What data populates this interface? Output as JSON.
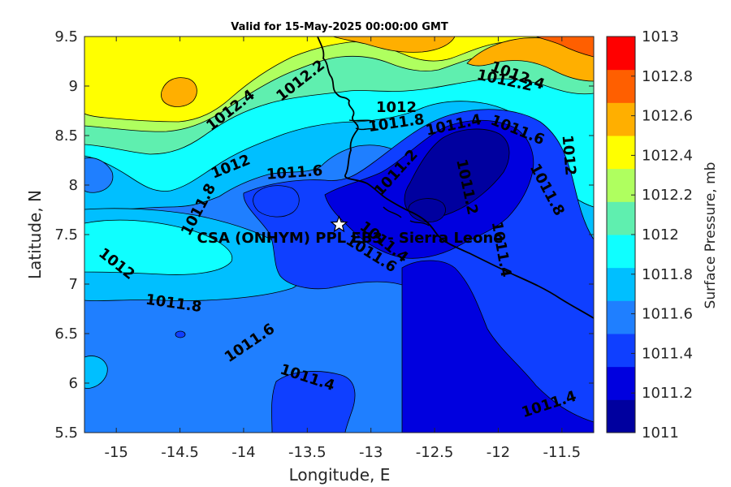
{
  "chart_data": {
    "type": "contour",
    "title": "Valid for 15-May-2025 00:00:00 GMT",
    "xlabel": "Longitude, E",
    "ylabel": "Latitude, N",
    "xlim": [
      -15.25,
      -11.25
    ],
    "ylim": [
      5.5,
      9.5
    ],
    "xticks": [
      -15,
      -14.5,
      -14,
      -13.5,
      -13,
      -12.5,
      -12,
      -11.5
    ],
    "xtick_labels": [
      "-15",
      "-14.5",
      "-14",
      "-13.5",
      "-13",
      "-12.5",
      "-12",
      "-11.5"
    ],
    "yticks": [
      5.5,
      6,
      6.5,
      7,
      7.5,
      8,
      8.5,
      9,
      9.5
    ],
    "ytick_labels": [
      "5.5",
      "6",
      "6.5",
      "7",
      "7.5",
      "8",
      "8.5",
      "9",
      "9.5"
    ],
    "colorbar": {
      "label": "Surface Pressure, mb",
      "levels": [
        1011,
        1011.2,
        1011.4,
        1011.6,
        1011.8,
        1012,
        1012.2,
        1012.4,
        1012.6,
        1012.8,
        1013
      ],
      "tick_labels": [
        "1011",
        "1011.2",
        "1011.4",
        "1011.6",
        "1011.8",
        "1012",
        "1012.2",
        "1012.4",
        "1012.6",
        "1012.8",
        "1013"
      ],
      "colors": [
        "#00009f",
        "#0000df",
        "#0f3fff",
        "#1f7fff",
        "#00bfff",
        "#0fffff",
        "#5fefaf",
        "#afff5f",
        "#ffff00",
        "#ffaf00",
        "#ff5f00",
        "#ff0000"
      ]
    },
    "site": {
      "name": "CSA (ONHYM) PPL EB3 - Sierra Leone",
      "lon": -13.25,
      "lat": 7.6
    },
    "contour_labels": [
      {
        "text": "1012.4",
        "lon": -14.1,
        "lat": 8.75,
        "angle": -38
      },
      {
        "text": "1012.2",
        "lon": -13.55,
        "lat": 9.05,
        "angle": -38
      },
      {
        "text": "1012.4",
        "lon": -11.85,
        "lat": 9.1,
        "angle": 20
      },
      {
        "text": "1012.2",
        "lon": -11.95,
        "lat": 9.05,
        "angle": 12
      },
      {
        "text": "1012",
        "lon": -12.8,
        "lat": 8.78,
        "angle": 0
      },
      {
        "text": "1011.8",
        "lon": -12.8,
        "lat": 8.62,
        "angle": -8
      },
      {
        "text": "1011.4",
        "lon": -12.35,
        "lat": 8.6,
        "angle": -12
      },
      {
        "text": "1011.6",
        "lon": -11.85,
        "lat": 8.55,
        "angle": 22
      },
      {
        "text": "1012",
        "lon": -14.1,
        "lat": 8.18,
        "angle": -22
      },
      {
        "text": "1011.6",
        "lon": -13.6,
        "lat": 8.12,
        "angle": -4
      },
      {
        "text": "1011.2",
        "lon": -12.8,
        "lat": 8.12,
        "angle": -48
      },
      {
        "text": "1011.2",
        "lon": -12.25,
        "lat": 7.98,
        "angle": 78
      },
      {
        "text": "1012",
        "lon": -11.45,
        "lat": 8.3,
        "angle": 85
      },
      {
        "text": "1011.8",
        "lon": -11.62,
        "lat": 7.95,
        "angle": 62
      },
      {
        "text": "1011.8",
        "lon": -14.35,
        "lat": 7.75,
        "angle": -62
      },
      {
        "text": "1011.4",
        "lon": -11.98,
        "lat": 7.35,
        "angle": 80
      },
      {
        "text": "1011.4",
        "lon": -12.9,
        "lat": 7.42,
        "angle": 38
      },
      {
        "text": "1011.6",
        "lon": -13.0,
        "lat": 7.3,
        "angle": 32
      },
      {
        "text": "1012",
        "lon": -15.0,
        "lat": 7.2,
        "angle": 38
      },
      {
        "text": "1011.8",
        "lon": -14.55,
        "lat": 6.8,
        "angle": 8
      },
      {
        "text": "1011.6",
        "lon": -13.95,
        "lat": 6.4,
        "angle": -34
      },
      {
        "text": "1011.4",
        "lon": -13.5,
        "lat": 6.05,
        "angle": 18
      },
      {
        "text": "1011.4",
        "lon": -11.6,
        "lat": 5.78,
        "angle": -18
      }
    ]
  }
}
